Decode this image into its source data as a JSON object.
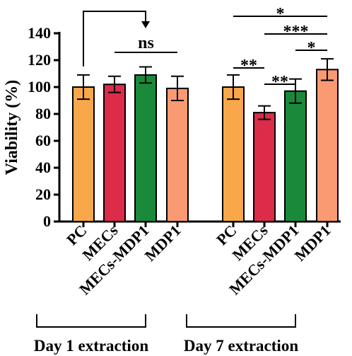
{
  "chart_data": {
    "type": "bar",
    "ylabel": "Viability (%)",
    "ylim": [
      0,
      140
    ],
    "yticks": [
      0,
      20,
      40,
      60,
      80,
      100,
      120,
      140
    ],
    "categories": [
      "PC",
      "MECs",
      "MECs-MDP1",
      "MDP1",
      "PC",
      "MECs",
      "MECs-MDP1",
      "MDP1"
    ],
    "values": [
      100,
      102,
      109,
      99,
      100,
      81,
      97,
      113
    ],
    "errors": [
      9,
      6,
      6,
      9,
      9,
      5,
      9,
      8
    ],
    "colors": [
      "#F8A84A",
      "#DC2C4A",
      "#1A8A3A",
      "#F99A72",
      "#F8A84A",
      "#DC2C4A",
      "#1A8A3A",
      "#F99A72"
    ],
    "groups": [
      {
        "label": "Day 1 extraction",
        "indices": [
          0,
          1,
          2,
          3
        ]
      },
      {
        "label": "Day 7 extraction",
        "indices": [
          4,
          5,
          6,
          7
        ]
      }
    ],
    "annotations": [
      {
        "type": "arrow",
        "from": 0,
        "to": 2
      },
      {
        "type": "bracket",
        "from": 1,
        "to": 3,
        "label": "ns"
      },
      {
        "type": "bracket",
        "from": 4,
        "to": 5,
        "label": "**"
      },
      {
        "type": "bracket",
        "from": 5,
        "to": 6,
        "label": "**"
      },
      {
        "type": "bracket",
        "from": 6,
        "to": 7,
        "label": "*"
      },
      {
        "type": "bracket",
        "from": 5,
        "to": 7,
        "label": "***"
      },
      {
        "type": "bracket",
        "from": 4,
        "to": 7,
        "label": "*"
      }
    ],
    "grid": false,
    "legend": "none"
  }
}
